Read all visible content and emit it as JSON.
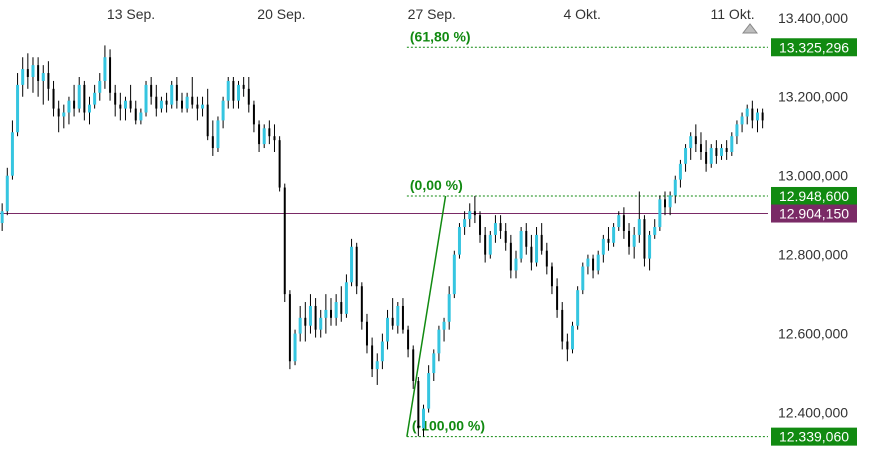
{
  "chart_data": {
    "type": "candlestick",
    "x_ticks": [
      {
        "label": "13 Sep.",
        "t": 13
      },
      {
        "label": "20 Sep.",
        "t": 20
      },
      {
        "label": "27 Sep.",
        "t": 27
      },
      {
        "label": "4 Okt.",
        "t": 34
      },
      {
        "label": "11 Okt.",
        "t": 41
      }
    ],
    "xlim": [
      6.9,
      42.65
    ],
    "y_ticks": [
      "12.400,000",
      "12.600,000",
      "12.800,000",
      "13.000,000",
      "13.200,000",
      "13.400,000"
    ],
    "y_tick_values": [
      12400,
      12600,
      12800,
      13000,
      13200,
      13400
    ],
    "ylim": [
      12290,
      13445
    ],
    "grid": false,
    "legend": "none",
    "colors": {
      "up_body": "#35c5e0",
      "wick": "#000000",
      "fib": "#118a11",
      "current_price": "#7a2a66",
      "tick_text": "#333333"
    },
    "fib_levels": [
      {
        "label": "(61,80 %)",
        "value": 13325.296,
        "tag": "13.325,296"
      },
      {
        "label": "(0,00 %)",
        "value": 12948.6,
        "tag": "12.948,600"
      },
      {
        "label": "(-100,00 %)",
        "value": 12339.06,
        "tag": "12.339,060"
      }
    ],
    "fib_trend_line": {
      "from": {
        "t": 25.84,
        "y": 12339.06
      },
      "to": {
        "t": 27.64,
        "y": 12948.6
      }
    },
    "current_price": {
      "value": 12904.15,
      "tag": "12.904,150"
    },
    "series": [
      {
        "note": "approximate 2-hour OHLC bars",
        "ohlc": [
          [
            12880,
            12930,
            12860,
            12910
          ],
          [
            12910,
            13020,
            12900,
            13000
          ],
          [
            13000,
            13140,
            12990,
            13110
          ],
          [
            13110,
            13260,
            13100,
            13230
          ],
          [
            13230,
            13300,
            13200,
            13270
          ],
          [
            13270,
            13310,
            13220,
            13250
          ],
          [
            13250,
            13300,
            13210,
            13280
          ],
          [
            13280,
            13300,
            13200,
            13240
          ],
          [
            13240,
            13280,
            13180,
            13260
          ],
          [
            13260,
            13290,
            13190,
            13220
          ],
          [
            13220,
            13240,
            13150,
            13170
          ],
          [
            13170,
            13190,
            13110,
            13150
          ],
          [
            13150,
            13180,
            13120,
            13160
          ],
          [
            13160,
            13200,
            13130,
            13190
          ],
          [
            13190,
            13230,
            13150,
            13170
          ],
          [
            13170,
            13250,
            13160,
            13230
          ],
          [
            13230,
            13240,
            13140,
            13160
          ],
          [
            13160,
            13200,
            13130,
            13180
          ],
          [
            13180,
            13230,
            13170,
            13210
          ],
          [
            13210,
            13260,
            13190,
            13240
          ],
          [
            13240,
            13330,
            13220,
            13300
          ],
          [
            13300,
            13320,
            13190,
            13210
          ],
          [
            13210,
            13230,
            13150,
            13180
          ],
          [
            13180,
            13210,
            13140,
            13170
          ],
          [
            13170,
            13200,
            13140,
            13190
          ],
          [
            13190,
            13230,
            13160,
            13170
          ],
          [
            13170,
            13190,
            13130,
            13140
          ],
          [
            13140,
            13170,
            13130,
            13160
          ],
          [
            13160,
            13240,
            13150,
            13230
          ],
          [
            13230,
            13250,
            13180,
            13200
          ],
          [
            13200,
            13230,
            13150,
            13170
          ],
          [
            13170,
            13200,
            13160,
            13190
          ],
          [
            13190,
            13210,
            13160,
            13180
          ],
          [
            13180,
            13240,
            13170,
            13230
          ],
          [
            13230,
            13250,
            13170,
            13190
          ],
          [
            13190,
            13210,
            13160,
            13170
          ],
          [
            13170,
            13210,
            13160,
            13200
          ],
          [
            13200,
            13250,
            13170,
            13180
          ],
          [
            13180,
            13200,
            13140,
            13170
          ],
          [
            13170,
            13200,
            13150,
            13180
          ],
          [
            13180,
            13220,
            13090,
            13100
          ],
          [
            13100,
            13140,
            13050,
            13070
          ],
          [
            13070,
            13150,
            13060,
            13140
          ],
          [
            13140,
            13200,
            13120,
            13190
          ],
          [
            13190,
            13250,
            13170,
            13240
          ],
          [
            13240,
            13250,
            13170,
            13190
          ],
          [
            13190,
            13240,
            13170,
            13230
          ],
          [
            13230,
            13250,
            13200,
            13220
          ],
          [
            13220,
            13250,
            13160,
            13180
          ],
          [
            13180,
            13190,
            13110,
            13130
          ],
          [
            13130,
            13140,
            13060,
            13080
          ],
          [
            13080,
            13130,
            13070,
            13120
          ],
          [
            13120,
            13140,
            13080,
            13100
          ],
          [
            13100,
            13130,
            13060,
            13090
          ],
          [
            13090,
            13100,
            12960,
            12970
          ],
          [
            12970,
            12980,
            12680,
            12700
          ],
          [
            12700,
            12710,
            12510,
            12530
          ],
          [
            12530,
            12610,
            12520,
            12600
          ],
          [
            12600,
            12670,
            12580,
            12640
          ],
          [
            12640,
            12680,
            12580,
            12620
          ],
          [
            12620,
            12700,
            12600,
            12670
          ],
          [
            12670,
            12690,
            12590,
            12610
          ],
          [
            12610,
            12660,
            12590,
            12640
          ],
          [
            12640,
            12700,
            12600,
            12660
          ],
          [
            12660,
            12690,
            12620,
            12640
          ],
          [
            12640,
            12700,
            12620,
            12680
          ],
          [
            12680,
            12720,
            12630,
            12650
          ],
          [
            12650,
            12750,
            12640,
            12730
          ],
          [
            12730,
            12840,
            12720,
            12820
          ],
          [
            12820,
            12830,
            12700,
            12720
          ],
          [
            12720,
            12730,
            12610,
            12630
          ],
          [
            12630,
            12650,
            12550,
            12570
          ],
          [
            12570,
            12590,
            12490,
            12510
          ],
          [
            12510,
            12550,
            12470,
            12530
          ],
          [
            12530,
            12600,
            12510,
            12580
          ],
          [
            12580,
            12660,
            12560,
            12640
          ],
          [
            12640,
            12690,
            12610,
            12620
          ],
          [
            12620,
            12680,
            12600,
            12670
          ],
          [
            12670,
            12690,
            12600,
            12610
          ],
          [
            12610,
            12620,
            12540,
            12560
          ],
          [
            12560,
            12570,
            12460,
            12480
          ],
          [
            12480,
            12490,
            12340,
            12360
          ],
          [
            12360,
            12420,
            12339.06,
            12410
          ],
          [
            12410,
            12520,
            12400,
            12500
          ],
          [
            12500,
            12560,
            12480,
            12550
          ],
          [
            12550,
            12620,
            12530,
            12610
          ],
          [
            12610,
            12640,
            12580,
            12630
          ],
          [
            12630,
            12720,
            12610,
            12700
          ],
          [
            12700,
            12810,
            12690,
            12800
          ],
          [
            12800,
            12880,
            12790,
            12870
          ],
          [
            12870,
            12910,
            12850,
            12890
          ],
          [
            12890,
            12930,
            12870,
            12910
          ],
          [
            12910,
            12948.6,
            12880,
            12900
          ],
          [
            12900,
            12910,
            12830,
            12850
          ],
          [
            12850,
            12870,
            12780,
            12800
          ],
          [
            12800,
            12860,
            12790,
            12850
          ],
          [
            12850,
            12900,
            12830,
            12880
          ],
          [
            12880,
            12900,
            12840,
            12860
          ],
          [
            12860,
            12880,
            12810,
            12830
          ],
          [
            12830,
            12850,
            12740,
            12760
          ],
          [
            12760,
            12810,
            12740,
            12790
          ],
          [
            12790,
            12870,
            12780,
            12860
          ],
          [
            12860,
            12880,
            12800,
            12820
          ],
          [
            12820,
            12850,
            12760,
            12780
          ],
          [
            12780,
            12870,
            12770,
            12850
          ],
          [
            12850,
            12880,
            12800,
            12810
          ],
          [
            12810,
            12830,
            12750,
            12770
          ],
          [
            12770,
            12780,
            12700,
            12720
          ],
          [
            12720,
            12740,
            12640,
            12660
          ],
          [
            12660,
            12680,
            12560,
            12580
          ],
          [
            12580,
            12600,
            12530,
            12560
          ],
          [
            12560,
            12630,
            12550,
            12620
          ],
          [
            12620,
            12720,
            12610,
            12710
          ],
          [
            12710,
            12780,
            12700,
            12770
          ],
          [
            12770,
            12800,
            12750,
            12790
          ],
          [
            12790,
            12800,
            12740,
            12760
          ],
          [
            12760,
            12810,
            12750,
            12800
          ],
          [
            12800,
            12850,
            12780,
            12840
          ],
          [
            12840,
            12870,
            12810,
            12830
          ],
          [
            12830,
            12880,
            12820,
            12870
          ],
          [
            12870,
            12910,
            12860,
            12900
          ],
          [
            12900,
            12920,
            12840,
            12860
          ],
          [
            12860,
            12880,
            12800,
            12820
          ],
          [
            12820,
            12870,
            12790,
            12850
          ],
          [
            12850,
            12960,
            12830,
            12890
          ],
          [
            12890,
            12900,
            12770,
            12790
          ],
          [
            12790,
            12860,
            12760,
            12850
          ],
          [
            12850,
            12890,
            12840,
            12870
          ],
          [
            12870,
            12950,
            12860,
            12940
          ],
          [
            12940,
            12960,
            12900,
            12920
          ],
          [
            12920,
            12960,
            12900,
            12950
          ],
          [
            12950,
            13000,
            12930,
            12990
          ],
          [
            12990,
            13040,
            12970,
            13030
          ],
          [
            13030,
            13080,
            13010,
            13070
          ],
          [
            13070,
            13110,
            13040,
            13100
          ],
          [
            13100,
            13130,
            13060,
            13080
          ],
          [
            13080,
            13110,
            13040,
            13060
          ],
          [
            13060,
            13090,
            13010,
            13030
          ],
          [
            13030,
            13080,
            13020,
            13070
          ],
          [
            13070,
            13090,
            13030,
            13050
          ],
          [
            13050,
            13080,
            13040,
            13070
          ],
          [
            13070,
            13090,
            13040,
            13060
          ],
          [
            13060,
            13110,
            13050,
            13100
          ],
          [
            13100,
            13140,
            13080,
            13130
          ],
          [
            13130,
            13160,
            13110,
            13150
          ],
          [
            13150,
            13180,
            13130,
            13170
          ],
          [
            13170,
            13190,
            13120,
            13140
          ],
          [
            13140,
            13170,
            13110,
            13160
          ],
          [
            13160,
            13170,
            13120,
            13140
          ]
        ]
      }
    ]
  }
}
